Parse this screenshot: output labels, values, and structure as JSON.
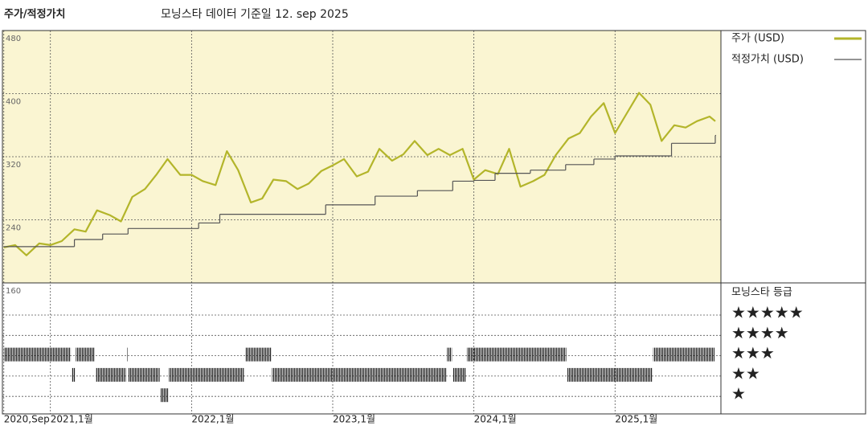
{
  "chart_data": {
    "type": "line",
    "title": "주가/적정가치",
    "subtitle": "모닝스타 데이터 기준일 12. sep 2025",
    "xlim": [
      2020.66,
      2025.75
    ],
    "xticks": [
      {
        "value": 2020.67,
        "label": "2020,Sep"
      },
      {
        "value": 2021,
        "label": "2021,1월"
      },
      {
        "value": 2022,
        "label": "2022,1월"
      },
      {
        "value": 2023,
        "label": "2023,1월"
      },
      {
        "value": 2024,
        "label": "2024,1월"
      },
      {
        "value": 2025,
        "label": "2025,1월"
      }
    ],
    "ylim": [
      160,
      480
    ],
    "yticks": [
      160,
      240,
      320,
      400,
      480
    ],
    "grid": true,
    "series": [
      {
        "name": "주가 (USD)",
        "color": "#b3b52a",
        "x": [
          2020.67,
          2020.75,
          2020.83,
          2020.92,
          2021,
          2021.08,
          2021.17,
          2021.25,
          2021.33,
          2021.42,
          2021.5,
          2021.58,
          2021.67,
          2021.75,
          2021.83,
          2021.92,
          2022,
          2022.08,
          2022.17,
          2022.25,
          2022.33,
          2022.42,
          2022.5,
          2022.58,
          2022.67,
          2022.75,
          2022.83,
          2022.92,
          2023,
          2023.08,
          2023.17,
          2023.25,
          2023.33,
          2023.42,
          2023.5,
          2023.58,
          2023.67,
          2023.75,
          2023.83,
          2023.92,
          2024,
          2024.08,
          2024.17,
          2024.25,
          2024.33,
          2024.42,
          2024.5,
          2024.58,
          2024.67,
          2024.75,
          2024.83,
          2024.92,
          2025,
          2025.08,
          2025.17,
          2025.25,
          2025.33,
          2025.42,
          2025.5,
          2025.58,
          2025.67,
          2025.71
        ],
        "values": [
          205,
          208,
          195,
          210,
          208,
          213,
          228,
          225,
          252,
          246,
          238,
          269,
          279,
          297,
          317,
          297,
          297,
          289,
          284,
          327,
          303,
          262,
          267,
          291,
          289,
          279,
          286,
          302,
          309,
          317,
          295,
          301,
          330,
          315,
          323,
          340,
          322,
          330,
          322,
          330,
          291,
          303,
          298,
          330,
          282,
          289,
          297,
          322,
          343,
          350,
          371,
          388,
          350,
          374,
          401,
          386,
          340,
          360,
          357,
          365,
          371,
          365
        ]
      },
      {
        "name": "적정가치 (USD)",
        "color": "#555555",
        "step": "post",
        "x": [
          2020.67,
          2021.17,
          2021.37,
          2021.55,
          2022.05,
          2022.2,
          2022.95,
          2023.3,
          2023.6,
          2023.85,
          2024,
          2024.15,
          2024.4,
          2024.65,
          2024.85,
          2025,
          2025.4,
          2025.71
        ],
        "values": [
          206,
          215,
          222,
          229,
          236,
          247,
          259,
          270,
          277,
          289,
          290,
          299,
          303,
          310,
          317,
          321,
          337,
          347
        ]
      }
    ],
    "rating": {
      "title": "모닝스타 등급",
      "color": "#222222",
      "levels": [
        {
          "value": 5,
          "label": "★★★★★"
        },
        {
          "value": 4,
          "label": "★★★★"
        },
        {
          "value": 3,
          "label": "★★★"
        },
        {
          "value": 2,
          "label": "★★"
        },
        {
          "value": 1,
          "label": "★"
        }
      ],
      "start": [
        2020.67,
        2021.15,
        2021.18,
        2021.32,
        2021.54,
        2021.55,
        2021.78,
        2021.84,
        2022.38,
        2022.57,
        2023.81,
        2023.85,
        2023.95,
        2024.66,
        2025.27
      ],
      "end": [
        2021.15,
        2021.18,
        2021.32,
        2021.54,
        2021.55,
        2021.78,
        2021.84,
        2022.38,
        2022.57,
        2023.81,
        2023.85,
        2023.95,
        2024.66,
        2025.27,
        2025.71
      ],
      "values": [
        3,
        2,
        3,
        2,
        3,
        2,
        1,
        2,
        3,
        2,
        3,
        2,
        3,
        2,
        3
      ]
    }
  }
}
